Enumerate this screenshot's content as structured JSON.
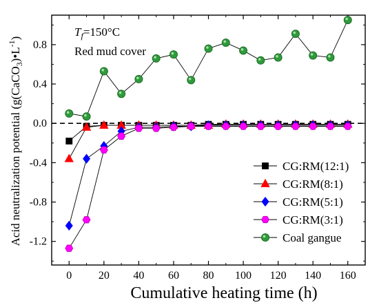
{
  "chart_data": {
    "type": "line",
    "xlabel": "Cumulative heating time (h)",
    "ylabel_parts": [
      "Acid neutralization potential (g(CaCO",
      "3",
      ")•L",
      "-1",
      ")"
    ],
    "annotation": {
      "temperature_parts": [
        "T",
        "f",
        "=150°C"
      ],
      "cover": "Red mud cover"
    },
    "xlim": [
      -10,
      170
    ],
    "ylim": [
      -1.44,
      1.1
    ],
    "xticks": [
      0,
      20,
      40,
      60,
      80,
      100,
      120,
      140,
      160
    ],
    "xtick_labels": [
      "0",
      "20",
      "40",
      "60",
      "80",
      "100",
      "120",
      "140",
      "160"
    ],
    "yticks": [
      -1.2,
      -0.8,
      -0.4,
      0.0,
      0.4,
      0.8
    ],
    "ytick_labels": [
      "-1.2",
      "-0.8",
      "-0.4",
      "0.0",
      "0.4",
      "0.8"
    ],
    "reference_line": {
      "y": 0.0,
      "style": "dashed"
    },
    "legend_position": "lower-right",
    "grid": false,
    "series": [
      {
        "name": "CG:RM(12:1)",
        "marker": "square",
        "color": "#000000",
        "x": [
          0,
          10,
          20,
          30,
          40,
          50,
          60,
          70,
          80,
          90,
          100,
          110,
          120,
          130,
          140,
          150,
          160
        ],
        "y": [
          -0.18,
          -0.03,
          -0.02,
          -0.02,
          -0.02,
          -0.02,
          -0.02,
          -0.02,
          -0.01,
          -0.01,
          -0.01,
          -0.01,
          -0.01,
          -0.01,
          -0.01,
          -0.01,
          -0.01
        ]
      },
      {
        "name": "CG:RM(8:1)",
        "marker": "triangle",
        "color": "#ff0000",
        "x": [
          0,
          10,
          20,
          30,
          40,
          50,
          60,
          70,
          80,
          90,
          100,
          110,
          120,
          130,
          140,
          150,
          160
        ],
        "y": [
          -0.36,
          -0.04,
          -0.02,
          -0.02,
          -0.02,
          -0.02,
          -0.02,
          -0.02,
          -0.02,
          -0.01,
          -0.01,
          -0.01,
          -0.01,
          -0.01,
          -0.01,
          -0.01,
          -0.01
        ]
      },
      {
        "name": "CG:RM(5:1)",
        "marker": "diamond",
        "color": "#0000ff",
        "x": [
          0,
          10,
          20,
          30,
          40,
          50,
          60,
          70,
          80,
          90,
          100,
          110,
          120,
          130,
          140,
          150,
          160
        ],
        "y": [
          -1.04,
          -0.36,
          -0.23,
          -0.08,
          -0.04,
          -0.04,
          -0.03,
          -0.03,
          -0.02,
          -0.02,
          -0.02,
          -0.02,
          -0.02,
          -0.02,
          -0.02,
          -0.02,
          -0.02
        ]
      },
      {
        "name": "CG:RM(3:1)",
        "marker": "hexagon",
        "color": "#ff00ff",
        "x": [
          0,
          10,
          20,
          30,
          40,
          50,
          60,
          70,
          80,
          90,
          100,
          110,
          120,
          130,
          140,
          150,
          160
        ],
        "y": [
          -1.27,
          -0.98,
          -0.27,
          -0.13,
          -0.05,
          -0.05,
          -0.04,
          -0.03,
          -0.03,
          -0.03,
          -0.03,
          -0.03,
          -0.03,
          -0.03,
          -0.03,
          -0.03,
          -0.03
        ]
      },
      {
        "name": "Coal gangue",
        "marker": "circle",
        "color": "#2e9b3a",
        "x": [
          0,
          10,
          20,
          30,
          40,
          50,
          60,
          70,
          80,
          90,
          100,
          110,
          120,
          130,
          140,
          150,
          160
        ],
        "y": [
          0.1,
          0.07,
          0.53,
          0.3,
          0.45,
          0.66,
          0.7,
          0.44,
          0.76,
          0.82,
          0.74,
          0.64,
          0.67,
          0.91,
          0.69,
          0.67,
          1.05
        ]
      }
    ]
  }
}
